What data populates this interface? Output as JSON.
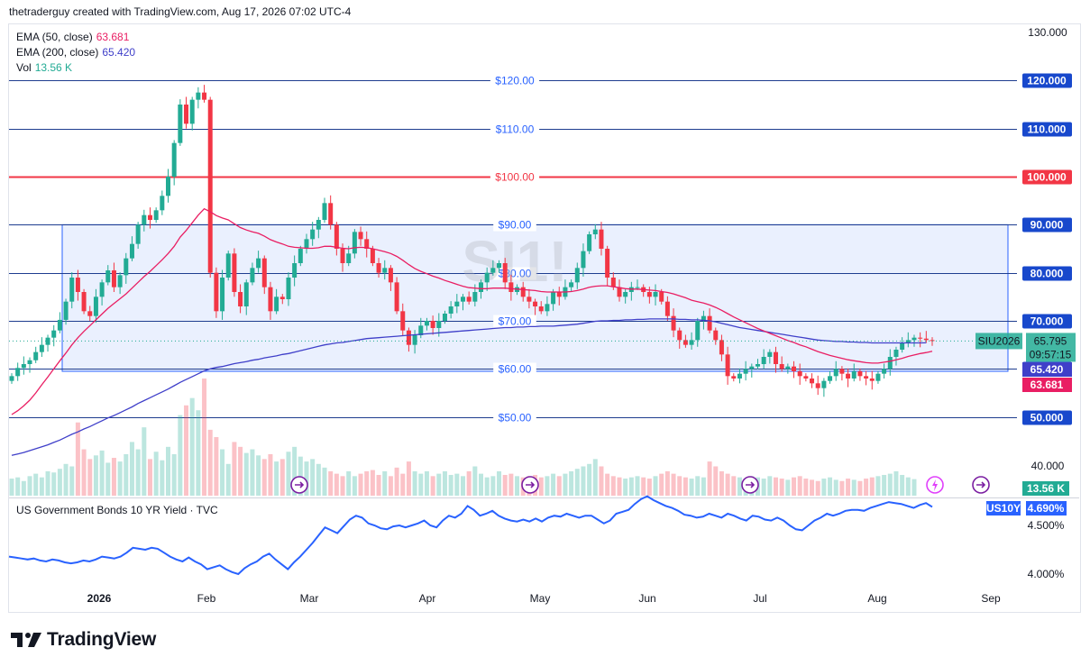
{
  "header": {
    "text": "thetraderguy created with TradingView.com, Aug 17, 2026 07:02 UTC-4"
  },
  "watermark": "SI1!",
  "legend": [
    {
      "label": "EMA (50, close)",
      "value": "63.681",
      "color": "#e91e63"
    },
    {
      "label": "EMA (200, close)",
      "value": "65.420",
      "color": "#3f3fc9"
    },
    {
      "label": "Vol",
      "value": "13.56 K",
      "color": "#22ab94"
    }
  ],
  "lower_pane": {
    "title": "US Government Bonds 10 YR Yield · TVC",
    "symbol_label": "US10Y",
    "last_value": "4.690%"
  },
  "brand": {
    "name": "TradingView"
  },
  "colors": {
    "up": "#22ab94",
    "down": "#f23645",
    "ema50": "#e91e63",
    "ema200": "#3f3fc9",
    "hline": "#2962ff",
    "red_line": "#f23645",
    "box_fill": "#e3ebfd",
    "box_border": "#2962ff",
    "yield": "#2962ff"
  },
  "chart_data": [
    {
      "type": "candlestick",
      "symbol": "SIU2026",
      "price_scale": {
        "range": [
          40,
          130
        ],
        "ticks": [
          "130.000",
          "40.000"
        ]
      },
      "x_ticks": [
        "2026",
        "Feb",
        "Mar",
        "Apr",
        "May",
        "Jun",
        "Jul",
        "Aug",
        "Sep"
      ],
      "horizontal_levels": [
        {
          "value": 120,
          "label": "$120.00",
          "axis_label": "120.000"
        },
        {
          "value": 110,
          "label": "$110.00",
          "axis_label": "110.000"
        },
        {
          "value": 100,
          "label": "$100.00",
          "axis_label": "100.000",
          "color": "red"
        },
        {
          "value": 90,
          "label": "$90.00",
          "axis_label": "90.000"
        },
        {
          "value": 80,
          "label": "$80.00",
          "axis_label": "80.000"
        },
        {
          "value": 70,
          "label": "$70.00",
          "axis_label": "70.000"
        },
        {
          "value": 60,
          "label": "$60.00",
          "axis_label": "60.000"
        },
        {
          "value": 50,
          "label": "$50.00",
          "axis_label": "50.000"
        }
      ],
      "range_box": {
        "top": 90,
        "bottom": 59.5
      },
      "last_price": {
        "symbol": "SIU2026",
        "value": "65.795",
        "countdown": "09:57:15"
      },
      "ema200_last": "65.420",
      "ema50_last": "63.681",
      "volume_last": "13.56 K",
      "closes": [
        58.5,
        60.2,
        61.0,
        61.8,
        63.5,
        65.0,
        66.5,
        68.0,
        70.2,
        74.0,
        79.0,
        76.0,
        72.0,
        71.0,
        75.0,
        78.0,
        80.5,
        77.0,
        79.5,
        83.0,
        86.0,
        90.0,
        92.0,
        91.0,
        93.0,
        96.0,
        100.0,
        107.0,
        115.0,
        111.0,
        116.0,
        117.5,
        116.0,
        80.0,
        72.0,
        79.0,
        84.0,
        76.0,
        73.0,
        78.0,
        81.0,
        83.0,
        77.0,
        72.0,
        75.0,
        74.5,
        79.0,
        82.0,
        85.0,
        87.0,
        89.0,
        91.0,
        94.5,
        90.0,
        85.0,
        82.0,
        84.0,
        88.5,
        87.0,
        85.0,
        82.0,
        80.0,
        81.0,
        78.0,
        72.0,
        68.0,
        65.0,
        67.0,
        69.0,
        70.0,
        68.5,
        70.0,
        71.5,
        73.0,
        74.0,
        75.0,
        74.0,
        76.0,
        78.0,
        80.0,
        81.0,
        82.0,
        78.0,
        76.0,
        77.0,
        75.0,
        74.0,
        73.0,
        72.0,
        73.5,
        76.0,
        75.0,
        77.0,
        78.0,
        81.0,
        84.5,
        88.0,
        89.0,
        85.0,
        79.0,
        77.0,
        75.0,
        76.0,
        77.0,
        77.0,
        76.0,
        75.0,
        76.0,
        74.0,
        71.0,
        68.0,
        66.0,
        65.0,
        66.0,
        70.0,
        71.0,
        68.0,
        66.0,
        63.0,
        58.5,
        58.0,
        59.0,
        60.0,
        60.5,
        61.0,
        62.5,
        63.5,
        61.0,
        60.0,
        60.5,
        59.5,
        58.5,
        58.0,
        57.0,
        56.0,
        57.5,
        58.5,
        60.0,
        59.0,
        58.0,
        59.5,
        58.5,
        58.0,
        57.5,
        59.0,
        60.0,
        62.5,
        64.0,
        65.5,
        66.0,
        66.5,
        66.3,
        66.0,
        65.795
      ],
      "ema50": [
        50.5,
        51.3,
        52.3,
        53.5,
        55.0,
        56.7,
        58.3,
        60.0,
        61.7,
        63.3,
        65.0,
        66.5,
        67.8,
        69.0,
        70.2,
        71.4,
        72.6,
        73.6,
        74.6,
        75.6,
        76.8,
        78.0,
        79.2,
        80.3,
        81.5,
        82.7,
        84.0,
        85.5,
        87.4,
        88.8,
        90.4,
        92.0,
        93.3,
        92.7,
        91.9,
        91.4,
        91.0,
        90.2,
        89.4,
        88.9,
        88.5,
        88.2,
        87.6,
        86.9,
        86.4,
        86.0,
        85.5,
        85.3,
        85.2,
        85.1,
        85.1,
        85.2,
        85.5,
        85.5,
        85.3,
        85.1,
        85.0,
        85.2,
        85.3,
        85.2,
        85.0,
        84.7,
        84.4,
        84.0,
        83.4,
        82.6,
        81.7,
        80.9,
        80.3,
        79.8,
        79.3,
        78.9,
        78.4,
        78.0,
        77.6,
        77.2,
        76.9,
        76.8,
        76.7,
        76.7,
        76.8,
        76.8,
        76.8,
        76.7,
        76.6,
        76.5,
        76.4,
        76.3,
        76.1,
        76.0,
        76.0,
        76.0,
        76.0,
        76.1,
        76.3,
        76.6,
        77.0,
        77.2,
        77.3,
        77.3,
        77.1,
        76.9,
        76.7,
        76.6,
        76.6,
        76.5,
        76.4,
        76.3,
        76.1,
        75.9,
        75.6,
        75.2,
        74.8,
        74.3,
        74.0,
        73.7,
        73.3,
        72.8,
        72.2,
        71.5,
        70.8,
        70.2,
        69.6,
        69.0,
        68.4,
        67.9,
        67.4,
        66.9,
        66.4,
        65.9,
        65.5,
        65.0,
        64.6,
        64.1,
        63.6,
        63.2,
        62.8,
        62.5,
        62.2,
        61.9,
        61.7,
        61.5,
        61.3,
        61.2,
        61.2,
        61.4,
        61.6,
        61.9,
        62.2,
        62.6,
        62.9,
        63.2,
        63.4,
        63.681
      ],
      "ema200": [
        42.0,
        42.3,
        42.6,
        43.0,
        43.4,
        43.8,
        44.2,
        44.7,
        45.2,
        45.8,
        46.4,
        46.9,
        47.5,
        48.0,
        48.6,
        49.2,
        49.8,
        50.3,
        50.9,
        51.5,
        52.1,
        52.8,
        53.4,
        54.0,
        54.6,
        55.2,
        55.8,
        56.5,
        57.2,
        57.8,
        58.4,
        59.0,
        59.6,
        60.0,
        60.3,
        60.5,
        60.8,
        61.1,
        61.3,
        61.5,
        61.8,
        62.0,
        62.3,
        62.5,
        62.7,
        63.0,
        63.2,
        63.5,
        63.8,
        64.1,
        64.4,
        64.7,
        65.0,
        65.2,
        65.4,
        65.5,
        65.7,
        65.9,
        66.1,
        66.3,
        66.4,
        66.5,
        66.6,
        66.7,
        66.8,
        66.9,
        67.0,
        67.1,
        67.2,
        67.3,
        67.4,
        67.5,
        67.6,
        67.7,
        67.8,
        67.9,
        68.0,
        68.1,
        68.2,
        68.3,
        68.4,
        68.5,
        68.6,
        68.6,
        68.7,
        68.7,
        68.8,
        68.8,
        68.9,
        68.9,
        68.9,
        69.0,
        69.1,
        69.2,
        69.3,
        69.5,
        69.7,
        69.9,
        70.0,
        70.0,
        70.1,
        70.1,
        70.2,
        70.2,
        70.3,
        70.3,
        70.4,
        70.4,
        70.4,
        70.4,
        70.4,
        70.3,
        70.3,
        70.2,
        70.2,
        70.1,
        70.0,
        69.8,
        69.5,
        69.2,
        68.9,
        68.6,
        68.4,
        68.2,
        68.0,
        67.8,
        67.6,
        67.4,
        67.2,
        67.0,
        66.8,
        66.6,
        66.4,
        66.2,
        66.0,
        65.9,
        65.8,
        65.7,
        65.7,
        65.6,
        65.6,
        65.5,
        65.5,
        65.4,
        65.4,
        65.4,
        65.4,
        65.4,
        65.4,
        65.4,
        65.4,
        65.4,
        65.42
      ],
      "volume": [
        14,
        15,
        12,
        16,
        18,
        15,
        20,
        19,
        22,
        26,
        24,
        60,
        38,
        30,
        33,
        37,
        27,
        31,
        28,
        34,
        44,
        38,
        56,
        30,
        36,
        29,
        40,
        34,
        66,
        74,
        80,
        70,
        96,
        54,
        48,
        38,
        26,
        44,
        40,
        35,
        38,
        33,
        30,
        34,
        28,
        30,
        36,
        40,
        32,
        28,
        30,
        26,
        23,
        20,
        18,
        16,
        20,
        16,
        18,
        20,
        21,
        17,
        20,
        16,
        23,
        18,
        28,
        20,
        18,
        20,
        16,
        18,
        20,
        17,
        18,
        16,
        20,
        24,
        18,
        15,
        16,
        20,
        17,
        18,
        16,
        15,
        16,
        17,
        15,
        16,
        18,
        16,
        18,
        20,
        22,
        24,
        26,
        30,
        24,
        18,
        16,
        15,
        14,
        15,
        16,
        15,
        14,
        16,
        18,
        20,
        18,
        16,
        15,
        14,
        16,
        15,
        28,
        24,
        20,
        18,
        16,
        15,
        14,
        16,
        15,
        14,
        16,
        15,
        14,
        13,
        15,
        16,
        14,
        13,
        12,
        14,
        15,
        13,
        12,
        14,
        13,
        12,
        14,
        15,
        16,
        17,
        18,
        20,
        17,
        15,
        13.56
      ],
      "event_markers": [
        "arrow",
        "arrow",
        "arrow",
        "arrow",
        "lightning",
        "arrow"
      ],
      "period": "daily"
    },
    {
      "type": "line",
      "name": "US Government Bonds 10 YR Yield · TVC",
      "y_ticks": [
        "4.500%",
        "4.000%"
      ],
      "yield_range": [
        3.8,
        4.9
      ],
      "last_value": "4.690%",
      "values": [
        4.18,
        4.17,
        4.16,
        4.15,
        4.16,
        4.14,
        4.13,
        4.15,
        4.14,
        4.12,
        4.11,
        4.12,
        4.14,
        4.13,
        4.15,
        4.18,
        4.17,
        4.16,
        4.18,
        4.22,
        4.27,
        4.26,
        4.25,
        4.27,
        4.26,
        4.22,
        4.18,
        4.15,
        4.13,
        4.17,
        4.13,
        4.1,
        4.05,
        4.07,
        4.09,
        4.05,
        4.02,
        4.0,
        4.06,
        4.1,
        4.13,
        4.18,
        4.21,
        4.15,
        4.1,
        4.05,
        4.12,
        4.18,
        4.25,
        4.32,
        4.4,
        4.48,
        4.45,
        4.42,
        4.49,
        4.56,
        4.6,
        4.58,
        4.52,
        4.5,
        4.47,
        4.46,
        4.49,
        4.5,
        4.48,
        4.5,
        4.52,
        4.55,
        4.5,
        4.48,
        4.55,
        4.6,
        4.58,
        4.62,
        4.7,
        4.66,
        4.6,
        4.62,
        4.65,
        4.6,
        4.57,
        4.55,
        4.54,
        4.56,
        4.54,
        4.57,
        4.54,
        4.58,
        4.6,
        4.59,
        4.62,
        4.6,
        4.58,
        4.6,
        4.6,
        4.56,
        4.52,
        4.55,
        4.62,
        4.64,
        4.66,
        4.72,
        4.77,
        4.8,
        4.76,
        4.73,
        4.7,
        4.68,
        4.65,
        4.61,
        4.6,
        4.58,
        4.59,
        4.62,
        4.6,
        4.58,
        4.62,
        4.6,
        4.57,
        4.55,
        4.6,
        4.59,
        4.56,
        4.55,
        4.58,
        4.55,
        4.5,
        4.46,
        4.45,
        4.5,
        4.55,
        4.58,
        4.62,
        4.6,
        4.62,
        4.65,
        4.66,
        4.66,
        4.65,
        4.68,
        4.7,
        4.72,
        4.74,
        4.73,
        4.72,
        4.7,
        4.68,
        4.71,
        4.73,
        4.69
      ]
    }
  ]
}
